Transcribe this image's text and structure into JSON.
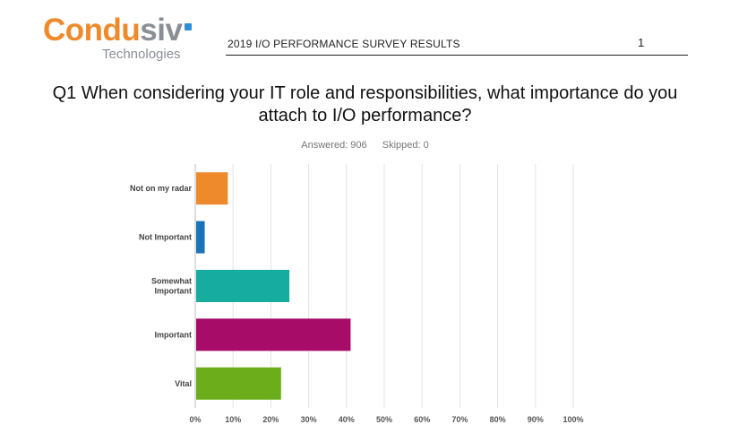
{
  "header": {
    "logo_main_a": "Condu",
    "logo_main_b": "siv",
    "logo_sub": "Technologies",
    "report_title": "2019 I/O PERFORMANCE SURVEY RESULTS",
    "page_number": "1"
  },
  "question": {
    "text": "Q1 When considering your IT role and responsibilities, what importance do you attach to I/O performance?",
    "answered": "Answered: 906",
    "skipped": "Skipped: 0"
  },
  "colors": {
    "brand_orange": "#ef8a2b",
    "brand_gray": "#8a8f96"
  },
  "chart_data": {
    "type": "bar",
    "orientation": "horizontal",
    "categories": [
      "Not on my radar",
      "Not Important",
      "Somewhat Important",
      "Important",
      "Vital"
    ],
    "values": [
      8.6,
      2.5,
      24.9,
      41.1,
      22.7
    ],
    "colors": [
      "#ee8a2b",
      "#1a73b6",
      "#17aca0",
      "#a60c68",
      "#6bad1a"
    ],
    "xlim": [
      0,
      100
    ],
    "xticks": [
      "0%",
      "10%",
      "20%",
      "30%",
      "40%",
      "50%",
      "60%",
      "70%",
      "80%",
      "90%",
      "100%"
    ],
    "grid": true
  }
}
